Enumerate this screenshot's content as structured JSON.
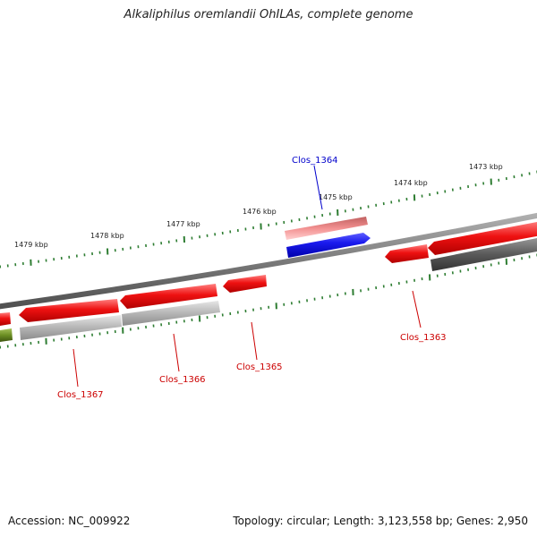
{
  "title": "Alkaliphilus oremlandii OhILAs, complete genome",
  "footer": {
    "accession": "Accession: NC_009922",
    "topology": "Topology: circular; Length: 3,123,558 bp; Genes: 2,950"
  },
  "ruler": {
    "tick_labels": [
      "1479 kbp",
      "1478 kbp",
      "1477 kbp",
      "1476 kbp",
      "1475 kbp",
      "1474 kbp",
      "1473 kbp"
    ]
  },
  "gene_labels": [
    {
      "name": "Clos_1364",
      "color": "#0000cc"
    },
    {
      "name": "Clos_1363",
      "color": "#cc0000"
    },
    {
      "name": "Clos_1365",
      "color": "#cc0000"
    },
    {
      "name": "Clos_1366",
      "color": "#cc0000"
    },
    {
      "name": "Clos_1367",
      "color": "#cc0000"
    }
  ],
  "colors": {
    "cds": "#ee1111",
    "cds_highlight_light": "#f08080",
    "cds_highlight": "#1a1aee",
    "rna_gray": "#b5b5b5",
    "dark_gray": "#5a5a5a",
    "olive": "#6b8e23",
    "backbone": "#808080",
    "tick": "#2e7d32"
  }
}
